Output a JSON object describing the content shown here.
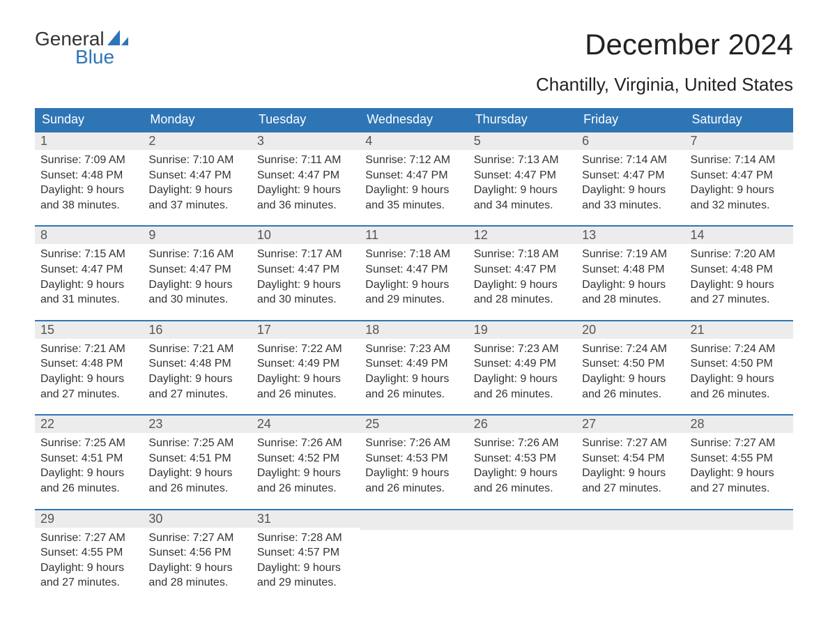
{
  "logo": {
    "text1": "General",
    "text2": "Blue",
    "icon_color": "#2e75b6"
  },
  "title": "December 2024",
  "location": "Chantilly, Virginia, United States",
  "colors": {
    "header_bg": "#2e75b6",
    "header_text": "#ffffff",
    "daynum_bg": "#ececec",
    "row_border": "#2e75b6",
    "body_text": "#333333"
  },
  "fonts": {
    "title_size": 42,
    "location_size": 26,
    "header_size": 18,
    "cell_size": 16
  },
  "day_headers": [
    "Sunday",
    "Monday",
    "Tuesday",
    "Wednesday",
    "Thursday",
    "Friday",
    "Saturday"
  ],
  "weeks": [
    [
      {
        "n": "1",
        "sr": "7:09 AM",
        "ss": "4:48 PM",
        "dl": "9 hours and 38 minutes."
      },
      {
        "n": "2",
        "sr": "7:10 AM",
        "ss": "4:47 PM",
        "dl": "9 hours and 37 minutes."
      },
      {
        "n": "3",
        "sr": "7:11 AM",
        "ss": "4:47 PM",
        "dl": "9 hours and 36 minutes."
      },
      {
        "n": "4",
        "sr": "7:12 AM",
        "ss": "4:47 PM",
        "dl": "9 hours and 35 minutes."
      },
      {
        "n": "5",
        "sr": "7:13 AM",
        "ss": "4:47 PM",
        "dl": "9 hours and 34 minutes."
      },
      {
        "n": "6",
        "sr": "7:14 AM",
        "ss": "4:47 PM",
        "dl": "9 hours and 33 minutes."
      },
      {
        "n": "7",
        "sr": "7:14 AM",
        "ss": "4:47 PM",
        "dl": "9 hours and 32 minutes."
      }
    ],
    [
      {
        "n": "8",
        "sr": "7:15 AM",
        "ss": "4:47 PM",
        "dl": "9 hours and 31 minutes."
      },
      {
        "n": "9",
        "sr": "7:16 AM",
        "ss": "4:47 PM",
        "dl": "9 hours and 30 minutes."
      },
      {
        "n": "10",
        "sr": "7:17 AM",
        "ss": "4:47 PM",
        "dl": "9 hours and 30 minutes."
      },
      {
        "n": "11",
        "sr": "7:18 AM",
        "ss": "4:47 PM",
        "dl": "9 hours and 29 minutes."
      },
      {
        "n": "12",
        "sr": "7:18 AM",
        "ss": "4:47 PM",
        "dl": "9 hours and 28 minutes."
      },
      {
        "n": "13",
        "sr": "7:19 AM",
        "ss": "4:48 PM",
        "dl": "9 hours and 28 minutes."
      },
      {
        "n": "14",
        "sr": "7:20 AM",
        "ss": "4:48 PM",
        "dl": "9 hours and 27 minutes."
      }
    ],
    [
      {
        "n": "15",
        "sr": "7:21 AM",
        "ss": "4:48 PM",
        "dl": "9 hours and 27 minutes."
      },
      {
        "n": "16",
        "sr": "7:21 AM",
        "ss": "4:48 PM",
        "dl": "9 hours and 27 minutes."
      },
      {
        "n": "17",
        "sr": "7:22 AM",
        "ss": "4:49 PM",
        "dl": "9 hours and 26 minutes."
      },
      {
        "n": "18",
        "sr": "7:23 AM",
        "ss": "4:49 PM",
        "dl": "9 hours and 26 minutes."
      },
      {
        "n": "19",
        "sr": "7:23 AM",
        "ss": "4:49 PM",
        "dl": "9 hours and 26 minutes."
      },
      {
        "n": "20",
        "sr": "7:24 AM",
        "ss": "4:50 PM",
        "dl": "9 hours and 26 minutes."
      },
      {
        "n": "21",
        "sr": "7:24 AM",
        "ss": "4:50 PM",
        "dl": "9 hours and 26 minutes."
      }
    ],
    [
      {
        "n": "22",
        "sr": "7:25 AM",
        "ss": "4:51 PM",
        "dl": "9 hours and 26 minutes."
      },
      {
        "n": "23",
        "sr": "7:25 AM",
        "ss": "4:51 PM",
        "dl": "9 hours and 26 minutes."
      },
      {
        "n": "24",
        "sr": "7:26 AM",
        "ss": "4:52 PM",
        "dl": "9 hours and 26 minutes."
      },
      {
        "n": "25",
        "sr": "7:26 AM",
        "ss": "4:53 PM",
        "dl": "9 hours and 26 minutes."
      },
      {
        "n": "26",
        "sr": "7:26 AM",
        "ss": "4:53 PM",
        "dl": "9 hours and 26 minutes."
      },
      {
        "n": "27",
        "sr": "7:27 AM",
        "ss": "4:54 PM",
        "dl": "9 hours and 27 minutes."
      },
      {
        "n": "28",
        "sr": "7:27 AM",
        "ss": "4:55 PM",
        "dl": "9 hours and 27 minutes."
      }
    ],
    [
      {
        "n": "29",
        "sr": "7:27 AM",
        "ss": "4:55 PM",
        "dl": "9 hours and 27 minutes."
      },
      {
        "n": "30",
        "sr": "7:27 AM",
        "ss": "4:56 PM",
        "dl": "9 hours and 28 minutes."
      },
      {
        "n": "31",
        "sr": "7:28 AM",
        "ss": "4:57 PM",
        "dl": "9 hours and 29 minutes."
      },
      null,
      null,
      null,
      null
    ]
  ],
  "labels": {
    "sunrise": "Sunrise: ",
    "sunset": "Sunset: ",
    "daylight": "Daylight: "
  }
}
